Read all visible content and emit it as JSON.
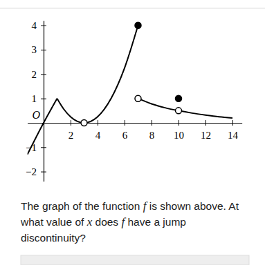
{
  "chart_data": {
    "type": "line",
    "color": "#000000",
    "xlim": [
      -1.2,
      14.7
    ],
    "ylim": [
      -2.4,
      4.2
    ],
    "xticks": [
      2,
      4,
      6,
      8,
      10,
      12,
      14
    ],
    "yticks": [
      {
        "value": -2,
        "label": "−2"
      },
      {
        "value": -1,
        "label": "−1"
      },
      1,
      2,
      3,
      4
    ],
    "annotations": [
      "O"
    ],
    "series": [
      {
        "type": "line",
        "x": [
          -1.2,
          0,
          1
        ],
        "values": [
          -1.3,
          0,
          1
        ]
      },
      {
        "type": "line",
        "x": [
          1,
          1.5,
          2,
          2.5,
          3,
          4,
          5,
          6,
          7
        ],
        "values": [
          1,
          0.56,
          0.25,
          0.06,
          0,
          0.25,
          1,
          2.25,
          4
        ]
      },
      {
        "type": "line",
        "x": [
          7,
          8,
          9,
          10,
          11,
          12,
          13,
          14
        ],
        "values": [
          1,
          0.78,
          0.62,
          0.5,
          0.4,
          0.32,
          0.25,
          0.2
        ]
      },
      {
        "type": "scatter",
        "marker": "open",
        "x": [
          3,
          7,
          10
        ],
        "values": [
          0,
          1,
          0.5
        ]
      },
      {
        "type": "scatter",
        "marker": "filled",
        "x": [
          7,
          10
        ],
        "values": [
          4,
          1
        ]
      }
    ]
  },
  "question": {
    "lines": [
      [
        {
          "text": "The graph of the function ",
          "italic": false
        },
        {
          "text": "f",
          "italic": true
        },
        {
          "text": " is shown above. At",
          "italic": false
        }
      ],
      [
        {
          "text": "what value of ",
          "italic": false
        },
        {
          "text": "x",
          "italic": true
        },
        {
          "text": " does ",
          "italic": false
        },
        {
          "text": "f",
          "italic": true
        },
        {
          "text": " have a jump",
          "italic": false
        }
      ],
      [
        {
          "text": "discontinuity?",
          "italic": false
        }
      ]
    ]
  }
}
